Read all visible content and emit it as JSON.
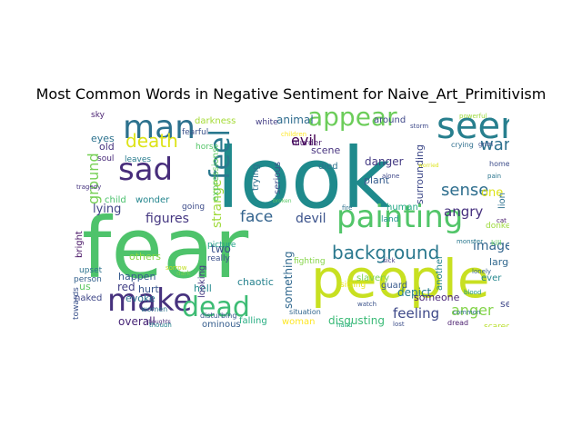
{
  "chart_data": {
    "type": "wordcloud",
    "title": "Most Common Words in Negative Sentiment for Naive_Art_Primitivism",
    "background": "#ffffff",
    "words": [
      {
        "text": "fear",
        "color": "#4ec36b"
      },
      {
        "text": "look",
        "color": "#1f8a8c"
      },
      {
        "text": "people",
        "color": "#c8e021"
      },
      {
        "text": "painting",
        "color": "#52c569"
      },
      {
        "text": "seem",
        "color": "#277f8e"
      },
      {
        "text": "man",
        "color": "#2c718e"
      },
      {
        "text": "appear",
        "color": "#6ccd5a"
      },
      {
        "text": "sad",
        "color": "#472d7b"
      },
      {
        "text": "make",
        "color": "#46327e"
      },
      {
        "text": "dead",
        "color": "#3dbc74"
      },
      {
        "text": "feel",
        "color": "#2a788e"
      },
      {
        "text": "death",
        "color": "#dde318"
      },
      {
        "text": "background",
        "color": "#2a788e"
      },
      {
        "text": "sense",
        "color": "#2e6e8e"
      },
      {
        "text": "war",
        "color": "#2d708e"
      },
      {
        "text": "angry",
        "color": "#46307e"
      },
      {
        "text": "face",
        "color": "#33638d"
      },
      {
        "text": "devil",
        "color": "#3b528b"
      },
      {
        "text": "image",
        "color": "#32658e"
      },
      {
        "text": "anger",
        "color": "#84d44b"
      },
      {
        "text": "feeling",
        "color": "#3e4989"
      },
      {
        "text": "evil",
        "color": "#440154"
      },
      {
        "text": "ground",
        "color": "#75d054"
      },
      {
        "text": "figures",
        "color": "#453781"
      },
      {
        "text": "strange",
        "color": "#9fda3a"
      },
      {
        "text": "danger",
        "color": "#443a83"
      },
      {
        "text": "something",
        "color": "#31688e"
      },
      {
        "text": "overall",
        "color": "#482677"
      },
      {
        "text": "disgusting",
        "color": "#3aba76"
      },
      {
        "text": "one",
        "color": "#dde318"
      },
      {
        "text": "two",
        "color": "#3b528b"
      },
      {
        "text": "lying",
        "color": "#414487"
      },
      {
        "text": "scene",
        "color": "#46327e"
      },
      {
        "text": "animal",
        "color": "#2f6c8e"
      },
      {
        "text": "eyes",
        "color": "#2c728e"
      },
      {
        "text": "surrounding",
        "color": "#3e4989"
      },
      {
        "text": "expressions",
        "color": "#5ec962"
      },
      {
        "text": "plant",
        "color": "#365c8d"
      },
      {
        "text": "depict",
        "color": "#287d8e"
      },
      {
        "text": "chaotic",
        "color": "#26828e"
      },
      {
        "text": "hell",
        "color": "#23898e"
      },
      {
        "text": "others",
        "color": "#8bd646"
      },
      {
        "text": "happen",
        "color": "#375b8d"
      },
      {
        "text": "red",
        "color": "#424086"
      },
      {
        "text": "evoke",
        "color": "#2c738e"
      },
      {
        "text": "hurt",
        "color": "#39558c"
      },
      {
        "text": "naked",
        "color": "#3f4788"
      },
      {
        "text": "old",
        "color": "#46337f"
      },
      {
        "text": "leaves",
        "color": "#287c8e"
      },
      {
        "text": "darkness",
        "color": "#a5db36"
      },
      {
        "text": "serious",
        "color": "#3c4f8a"
      },
      {
        "text": "trying",
        "color": "#2e6f8e"
      },
      {
        "text": "died",
        "color": "#2d718e"
      },
      {
        "text": "around",
        "color": "#3f4889"
      },
      {
        "text": "human",
        "color": "#22a785"
      },
      {
        "text": "someone",
        "color": "#482475"
      },
      {
        "text": "scared",
        "color": "#b8de29"
      },
      {
        "text": "woman",
        "color": "#fde725"
      },
      {
        "text": "falling",
        "color": "#26ad81"
      },
      {
        "text": "ominous",
        "color": "#365d8d"
      },
      {
        "text": "looking",
        "color": "#453882"
      },
      {
        "text": "wonder",
        "color": "#24868e"
      },
      {
        "text": "child",
        "color": "#4ac16d"
      },
      {
        "text": "guard",
        "color": "#38598c"
      },
      {
        "text": "large",
        "color": "#31688e"
      },
      {
        "text": "another",
        "color": "#25848e"
      },
      {
        "text": "slavery",
        "color": "#7ad151"
      },
      {
        "text": "sitting",
        "color": "#e5e419"
      },
      {
        "text": "fighting",
        "color": "#86d549"
      },
      {
        "text": "see",
        "color": "#3f4889"
      },
      {
        "text": "sky",
        "color": "#481f70"
      },
      {
        "text": "fearful",
        "color": "#3b528b"
      },
      {
        "text": "white",
        "color": "#433e85"
      },
      {
        "text": "horse",
        "color": "#54c568"
      },
      {
        "text": "murder",
        "color": "#48186a"
      },
      {
        "text": "lion",
        "color": "#2d708e"
      },
      {
        "text": "land",
        "color": "#20928c"
      },
      {
        "text": "soul",
        "color": "#482979"
      },
      {
        "text": "us",
        "color": "#5ec962"
      },
      {
        "text": "towards",
        "color": "#3b528b"
      },
      {
        "text": "upset",
        "color": "#2c738e"
      },
      {
        "text": "person",
        "color": "#34618d"
      },
      {
        "text": "ever",
        "color": "#24878e"
      },
      {
        "text": "bright",
        "color": "#471365"
      },
      {
        "text": "going",
        "color": "#3e4c8a"
      },
      {
        "text": "picture",
        "color": "#1fa088"
      },
      {
        "text": "really",
        "color": "#3b518b"
      },
      {
        "text": "women",
        "color": "#2b748e"
      },
      {
        "text": "disturbing",
        "color": "#38588c"
      },
      {
        "text": "situation",
        "color": "#31678e"
      },
      {
        "text": "crying",
        "color": "#2e6e8e"
      },
      {
        "text": "home",
        "color": "#3d4d8a"
      },
      {
        "text": "donkey",
        "color": "#9dd93b"
      },
      {
        "text": "dread",
        "color": "#481b6d"
      },
      {
        "text": "kill",
        "color": "#5cc863"
      },
      {
        "text": "fire",
        "color": "#2d708e"
      },
      {
        "text": "tragedy",
        "color": "#46337e"
      },
      {
        "text": "monster",
        "color": "#2a788e"
      },
      {
        "text": "sorrow",
        "color": "#c2df23"
      },
      {
        "text": "blood",
        "color": "#1e9b8a"
      },
      {
        "text": "storm",
        "color": "#3e4a89"
      },
      {
        "text": "dark",
        "color": "#75d054"
      },
      {
        "text": "alone",
        "color": "#3f4889"
      },
      {
        "text": "though",
        "color": "#26828e"
      },
      {
        "text": "children",
        "color": "#fde725"
      },
      {
        "text": "lost",
        "color": "#3d4e8a"
      },
      {
        "text": "powerful",
        "color": "#9bd93c"
      },
      {
        "text": "common",
        "color": "#2e6f8e"
      },
      {
        "text": "cat",
        "color": "#481a6c"
      },
      {
        "text": "thoughts",
        "color": "#472c7a"
      },
      {
        "text": "hand",
        "color": "#29af7f"
      },
      {
        "text": "sick",
        "color": "#433d84"
      },
      {
        "text": "watch",
        "color": "#3b528b"
      },
      {
        "text": "lonely",
        "color": "#34618d"
      },
      {
        "text": "worried",
        "color": "#dde318"
      },
      {
        "text": "broken",
        "color": "#5ac864"
      },
      {
        "text": "pain",
        "color": "#2b758e"
      },
      {
        "text": "grim",
        "color": "#3c4f8a"
      }
    ]
  }
}
